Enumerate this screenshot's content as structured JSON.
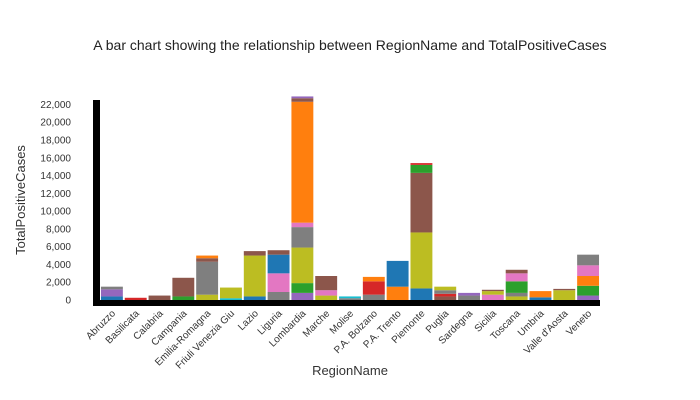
{
  "chart_data": {
    "type": "bar",
    "stacked": true,
    "title": "A bar chart showing the relationship between RegionName and TotalPositiveCases",
    "xlabel": "RegionName",
    "ylabel": "TotalPositiveCases",
    "ylim": [
      0,
      22500
    ],
    "yticks": [
      0,
      2000,
      4000,
      6000,
      8000,
      10000,
      12000,
      14000,
      16000,
      18000,
      20000,
      22000
    ],
    "ytick_labels": [
      "0",
      "2,000",
      "4,000",
      "6,000",
      "8,000",
      "10,000",
      "12,000",
      "14,000",
      "16,000",
      "18,000",
      "20,000",
      "22,000"
    ],
    "grid": false,
    "legend": "none",
    "categories": [
      "Abruzzo",
      "Basilicata",
      "Calabria",
      "Campania",
      "Emilia-Romagna",
      "Friuli Venezia Giulia",
      "Lazio",
      "Liguria",
      "Lombardia",
      "Marche",
      "Molise",
      "P.A. Bolzano",
      "P.A. Trento",
      "Piemonte",
      "Puglia",
      "Sardegna",
      "Sicilia",
      "Toscana",
      "Umbria",
      "Valle d'Aosta",
      "Veneto"
    ],
    "tick_labels": [
      "Abruzzo",
      "Basilicata",
      "Calabria",
      "Campania",
      "Emilia-Romagna",
      "Friuli Venezia Giu",
      "Lazio",
      "Liguria",
      "Lombardia",
      "Marche",
      "Molise",
      "P.A. Bolzano",
      "P.A. Trento",
      "Piemonte",
      "Puglia",
      "Sardegna",
      "Sicilia",
      "Toscana",
      "Umbria",
      "Valle d'Aosta",
      "Veneto"
    ],
    "segments": [
      [
        {
          "value": 400,
          "color": "#1f77b4"
        },
        {
          "value": 800,
          "color": "#9467bd"
        },
        {
          "value": 300,
          "color": "#7f7f7f"
        }
      ],
      [
        {
          "value": 250,
          "color": "#d62728"
        }
      ],
      [
        {
          "value": 500,
          "color": "#8c564b"
        }
      ],
      [
        {
          "value": 400,
          "color": "#2ca02c"
        },
        {
          "value": 2100,
          "color": "#8c564b"
        }
      ],
      [
        {
          "value": 600,
          "color": "#bcbd22"
        },
        {
          "value": 3700,
          "color": "#7f7f7f"
        },
        {
          "value": 400,
          "color": "#8c564b"
        },
        {
          "value": 300,
          "color": "#ff7f0e"
        }
      ],
      [
        {
          "value": 200,
          "color": "#17becf"
        },
        {
          "value": 1200,
          "color": "#bcbd22"
        }
      ],
      [
        {
          "value": 400,
          "color": "#1f77b4"
        },
        {
          "value": 4600,
          "color": "#bcbd22"
        },
        {
          "value": 500,
          "color": "#8c564b"
        }
      ],
      [
        {
          "value": 900,
          "color": "#7f7f7f"
        },
        {
          "value": 2100,
          "color": "#e377c2"
        },
        {
          "value": 2100,
          "color": "#1f77b4"
        },
        {
          "value": 500,
          "color": "#8c564b"
        }
      ],
      [
        {
          "value": 800,
          "color": "#9467bd"
        },
        {
          "value": 1100,
          "color": "#2ca02c"
        },
        {
          "value": 4000,
          "color": "#bcbd22"
        },
        {
          "value": 2300,
          "color": "#7f7f7f"
        },
        {
          "value": 500,
          "color": "#e377c2"
        },
        {
          "value": 13600,
          "color": "#ff7f0e"
        },
        {
          "value": 400,
          "color": "#8c564b"
        },
        {
          "value": 200,
          "color": "#9467bd"
        }
      ],
      [
        {
          "value": 500,
          "color": "#bcbd22"
        },
        {
          "value": 600,
          "color": "#e377c2"
        },
        {
          "value": 1600,
          "color": "#8c564b"
        }
      ],
      [
        {
          "value": 200,
          "color": "#7f7f7f"
        },
        {
          "value": 200,
          "color": "#17becf"
        }
      ],
      [
        {
          "value": 600,
          "color": "#7f7f7f"
        },
        {
          "value": 1500,
          "color": "#d62728"
        },
        {
          "value": 500,
          "color": "#ff7f0e"
        }
      ],
      [
        {
          "value": 1500,
          "color": "#ff7f0e"
        },
        {
          "value": 2900,
          "color": "#1f77b4"
        }
      ],
      [
        {
          "value": 1300,
          "color": "#1f77b4"
        },
        {
          "value": 6300,
          "color": "#bcbd22"
        },
        {
          "value": 6700,
          "color": "#8c564b"
        },
        {
          "value": 900,
          "color": "#2ca02c"
        },
        {
          "value": 200,
          "color": "#d62728"
        }
      ],
      [
        {
          "value": 400,
          "color": "#8c564b"
        },
        {
          "value": 300,
          "color": "#d62728"
        },
        {
          "value": 400,
          "color": "#7f7f7f"
        },
        {
          "value": 400,
          "color": "#bcbd22"
        }
      ],
      [
        {
          "value": 500,
          "color": "#7f7f7f"
        },
        {
          "value": 300,
          "color": "#9467bd"
        }
      ],
      [
        {
          "value": 600,
          "color": "#e377c2"
        },
        {
          "value": 400,
          "color": "#bcbd22"
        },
        {
          "value": 150,
          "color": "#8c564b"
        }
      ],
      [
        {
          "value": 400,
          "color": "#bcbd22"
        },
        {
          "value": 400,
          "color": "#7f7f7f"
        },
        {
          "value": 1300,
          "color": "#2ca02c"
        },
        {
          "value": 900,
          "color": "#e377c2"
        },
        {
          "value": 400,
          "color": "#8c564b"
        }
      ],
      [
        {
          "value": 300,
          "color": "#1f77b4"
        },
        {
          "value": 700,
          "color": "#ff7f0e"
        }
      ],
      [
        {
          "value": 1100,
          "color": "#bcbd22"
        },
        {
          "value": 150,
          "color": "#8c564b"
        }
      ],
      [
        {
          "value": 500,
          "color": "#9467bd"
        },
        {
          "value": 1100,
          "color": "#2ca02c"
        },
        {
          "value": 1100,
          "color": "#ff7f0e"
        },
        {
          "value": 1200,
          "color": "#e377c2"
        },
        {
          "value": 1200,
          "color": "#7f7f7f"
        }
      ]
    ]
  }
}
